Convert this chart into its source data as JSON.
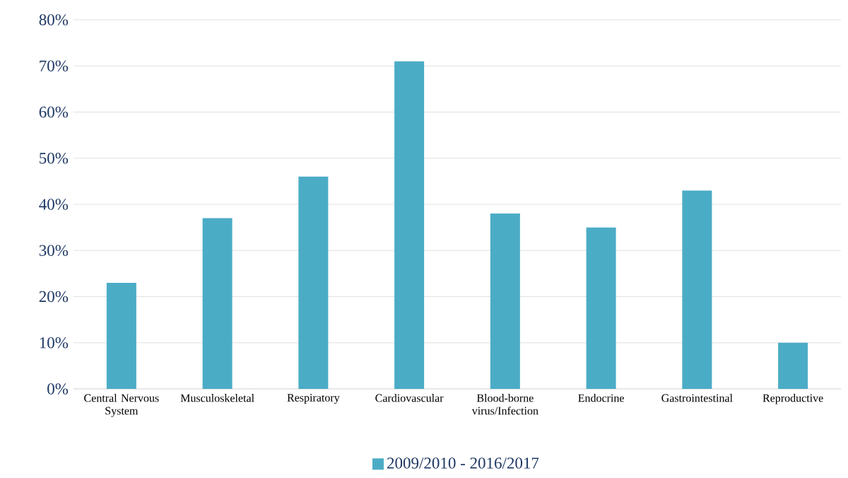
{
  "chart_data": {
    "type": "bar",
    "categories": [
      "Central Nervous System",
      "Musculoskeletal",
      "Respiratory",
      "Cardiovascular",
      "Blood-borne virus/Infection",
      "Endocrine",
      "Gastrointestinal",
      "Reproductive"
    ],
    "series": [
      {
        "name": "2009/2010 - 2016/2017",
        "color": "#4bacc6",
        "values": [
          23,
          37,
          46,
          71,
          38,
          35,
          43,
          10
        ]
      }
    ],
    "ylim": [
      0,
      80
    ],
    "yticks": [
      {
        "value": 0,
        "label": "0%"
      },
      {
        "value": 10,
        "label": "10%"
      },
      {
        "value": 20,
        "label": "20%"
      },
      {
        "value": 30,
        "label": "30%"
      },
      {
        "value": 40,
        "label": "40%"
      },
      {
        "value": 50,
        "label": "50%"
      },
      {
        "value": 60,
        "label": "60%"
      },
      {
        "value": 70,
        "label": "70%"
      },
      {
        "value": 80,
        "label": "80%"
      }
    ],
    "grid": "y",
    "legend": "bottom"
  }
}
